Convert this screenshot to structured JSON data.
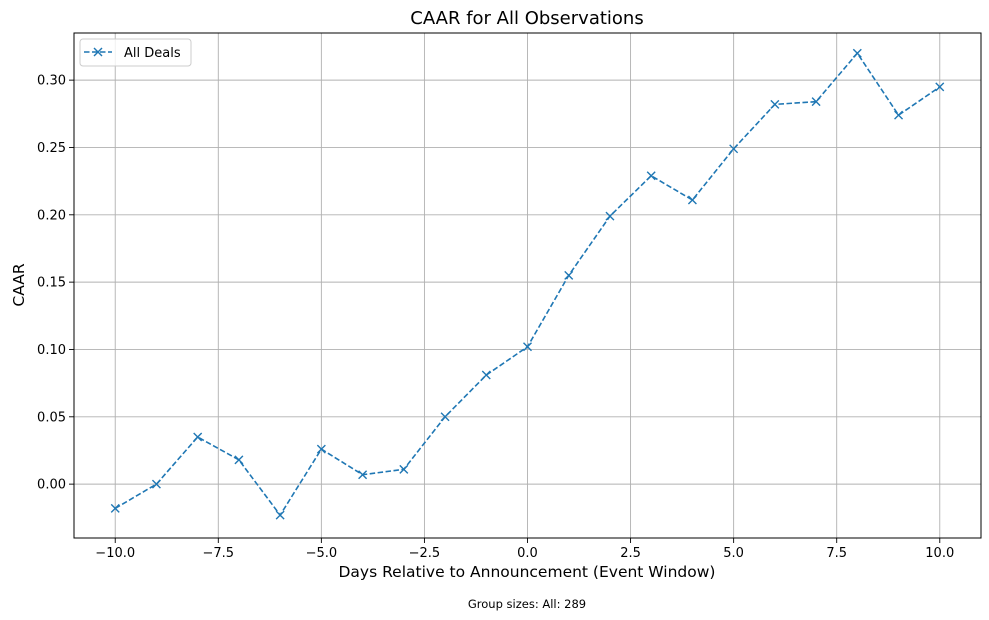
{
  "chart_data": {
    "type": "line",
    "title": "CAAR for All Observations",
    "xlabel": "Days Relative to Announcement (Event Window)",
    "ylabel": "CAAR",
    "footnote": "Group sizes: All: 289",
    "xlim": [
      -11,
      11
    ],
    "ylim": [
      -0.04,
      0.335
    ],
    "x_ticks": [
      -10.0,
      -7.5,
      -5.0,
      -2.5,
      0.0,
      2.5,
      5.0,
      7.5,
      10.0
    ],
    "x_tick_labels": [
      "−10.0",
      "−7.5",
      "−5.0",
      "−2.5",
      "0.0",
      "2.5",
      "5.0",
      "7.5",
      "10.0"
    ],
    "y_ticks": [
      0.0,
      0.05,
      0.1,
      0.15,
      0.2,
      0.25,
      0.3
    ],
    "y_tick_labels": [
      "0.00",
      "0.05",
      "0.10",
      "0.15",
      "0.20",
      "0.25",
      "0.30"
    ],
    "grid": true,
    "legend_position": "top-left",
    "series": [
      {
        "name": "All Deals",
        "color": "#1f77b4",
        "linestyle": "dashed",
        "marker": "x",
        "x": [
          -10,
          -9,
          -8,
          -7,
          -6,
          -5,
          -4,
          -3,
          -2,
          -1,
          0,
          1,
          2,
          3,
          4,
          5,
          6,
          7,
          8,
          9,
          10
        ],
        "values": [
          -0.018,
          0.0,
          0.035,
          0.018,
          -0.023,
          0.026,
          0.007,
          0.011,
          0.05,
          0.081,
          0.102,
          0.155,
          0.199,
          0.229,
          0.211,
          0.249,
          0.282,
          0.284,
          0.32,
          0.274,
          0.295
        ]
      }
    ]
  }
}
